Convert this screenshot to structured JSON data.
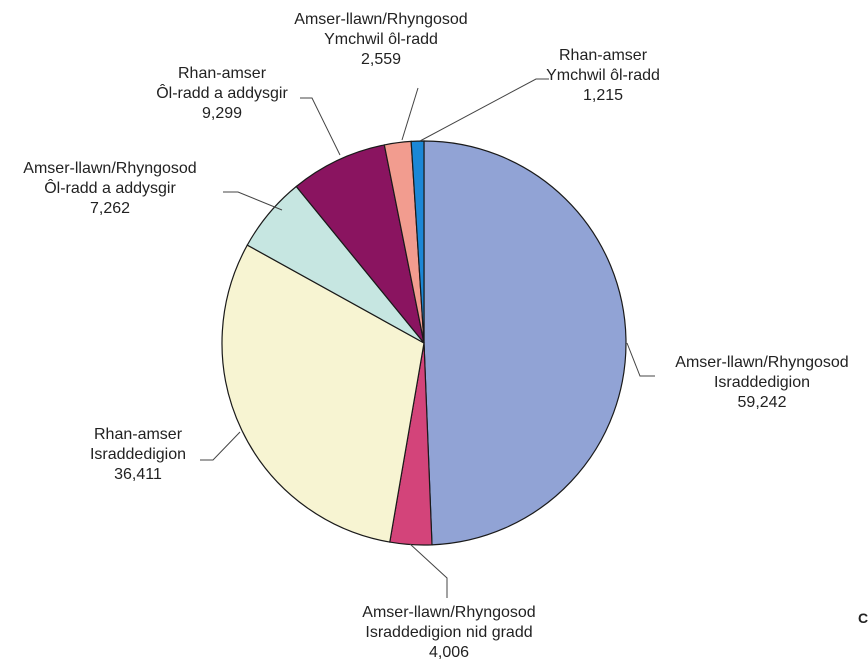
{
  "chart_data": {
    "type": "pie",
    "slices": [
      {
        "label_lines": [
          "Amser-llawn/Rhyngosod",
          "Israddedigion"
        ],
        "value": 59242,
        "value_text": "59,242",
        "color": "#91a3d5"
      },
      {
        "label_lines": [
          "Amser-llawn/Rhyngosod",
          "Israddedigion nid gradd"
        ],
        "value": 4006,
        "value_text": "4,006",
        "color": "#d3447a"
      },
      {
        "label_lines": [
          "Rhan-amser",
          "Israddedigion"
        ],
        "value": 36411,
        "value_text": "36,411",
        "color": "#f7f4d2"
      },
      {
        "label_lines": [
          "Amser-llawn/Rhyngosod",
          "Ôl-radd a addysgir"
        ],
        "value": 7262,
        "value_text": "7,262",
        "color": "#c6e6e1"
      },
      {
        "label_lines": [
          "Rhan-amser",
          "Ôl-radd a addysgir"
        ],
        "value": 9299,
        "value_text": "9,299",
        "color": "#8a1460"
      },
      {
        "label_lines": [
          "Amser-llawn/Rhyngosod",
          "Ymchwil ôl-radd"
        ],
        "value": 2559,
        "value_text": "2,559",
        "color": "#f29c8f"
      },
      {
        "label_lines": [
          "Rhan-amser",
          "Ymchwil ôl-radd"
        ],
        "value": 1215,
        "value_text": "1,215",
        "color": "#1b87d6"
      }
    ],
    "legend": "none",
    "start": "top",
    "direction": "clockwise"
  },
  "corner_text": "C"
}
